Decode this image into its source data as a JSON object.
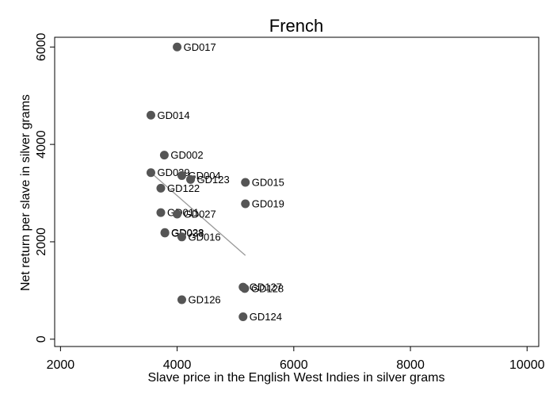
{
  "chart_data": {
    "type": "scatter",
    "title": "French",
    "xlabel": "Slave price in the English West Indies in silver grams",
    "ylabel": "Net return per slave in silver grams",
    "xlim": [
      1900,
      10200
    ],
    "ylim": [
      -150,
      6200
    ],
    "xticks": [
      2000,
      4000,
      6000,
      8000,
      10000
    ],
    "yticks": [
      0,
      2000,
      4000,
      6000
    ],
    "grid": false,
    "colors": {
      "point": "#555555",
      "fit_line": "#999999"
    },
    "points": [
      {
        "label": "GD017",
        "x": 4000,
        "y": 6000
      },
      {
        "label": "GD014",
        "x": 3550,
        "y": 4600
      },
      {
        "label": "GD002",
        "x": 3780,
        "y": 3780
      },
      {
        "label": "GD039",
        "x": 3550,
        "y": 3420
      },
      {
        "label": "GD004",
        "x": 4080,
        "y": 3360
      },
      {
        "label": "GD123",
        "x": 4230,
        "y": 3280
      },
      {
        "label": "GD015",
        "x": 5170,
        "y": 3220
      },
      {
        "label": "GD122",
        "x": 3720,
        "y": 3100
      },
      {
        "label": "GD019",
        "x": 5170,
        "y": 2780
      },
      {
        "label": "GD011",
        "x": 3720,
        "y": 2600
      },
      {
        "label": "GD027",
        "x": 4000,
        "y": 2570
      },
      {
        "label": "GD028",
        "x": 3790,
        "y": 2190
      },
      {
        "label": "GD033",
        "x": 3790,
        "y": 2180
      },
      {
        "label": "GD016",
        "x": 4080,
        "y": 2100
      },
      {
        "label": "GD127",
        "x": 5130,
        "y": 1070
      },
      {
        "label": "GD128",
        "x": 5160,
        "y": 1040
      },
      {
        "label": "GD126",
        "x": 4080,
        "y": 810
      },
      {
        "label": "GD124",
        "x": 5130,
        "y": 460
      }
    ],
    "fit_line": [
      {
        "x": 3550,
        "y": 3420
      },
      {
        "x": 5170,
        "y": 1720
      }
    ]
  }
}
